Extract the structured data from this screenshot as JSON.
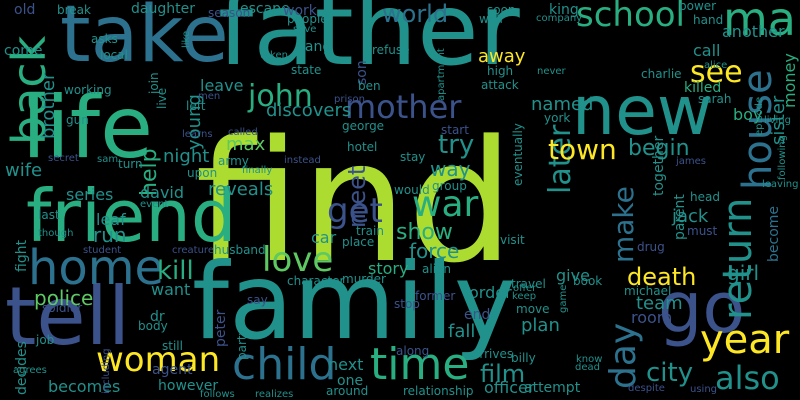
{
  "palette": {
    "background": "#000000",
    "dark_purple": "#440154",
    "indigo": "#3b528b",
    "blue": "#2c728e",
    "teal": "#21918c",
    "green": "#28ae80",
    "light_green": "#5ec962",
    "lime": "#addc30",
    "yellow": "#fde725"
  },
  "words": [
    {
      "key": "find",
      "text": "find"
    },
    {
      "key": "family",
      "text": "family"
    },
    {
      "key": "father",
      "text": "father"
    },
    {
      "key": "take",
      "text": "take"
    },
    {
      "key": "life",
      "text": "life"
    },
    {
      "key": "friend",
      "text": "friend"
    },
    {
      "key": "tell",
      "text": "tell"
    },
    {
      "key": "new",
      "text": "new"
    },
    {
      "key": "go",
      "text": "go"
    },
    {
      "key": "home",
      "text": "home"
    },
    {
      "key": "back",
      "text": "back"
    },
    {
      "key": "man",
      "text": "man"
    },
    {
      "key": "house",
      "text": "house"
    },
    {
      "key": "return",
      "text": "return"
    },
    {
      "key": "year",
      "text": "year"
    },
    {
      "key": "child",
      "text": "child"
    },
    {
      "key": "time",
      "text": "time"
    },
    {
      "key": "school",
      "text": "school"
    },
    {
      "key": "mother",
      "text": "mother"
    },
    {
      "key": "woman",
      "text": "woman"
    },
    {
      "key": "day",
      "text": "day"
    },
    {
      "key": "love",
      "text": "love"
    },
    {
      "key": "war",
      "text": "war"
    },
    {
      "key": "get",
      "text": "get"
    },
    {
      "key": "john",
      "text": "john"
    },
    {
      "key": "also",
      "text": "also"
    },
    {
      "key": "see",
      "text": "see"
    },
    {
      "key": "world",
      "text": "world"
    },
    {
      "key": "later",
      "text": "later"
    },
    {
      "key": "town",
      "text": "town"
    },
    {
      "key": "make",
      "text": "make"
    },
    {
      "key": "meet",
      "text": "meet"
    },
    {
      "key": "help",
      "text": "help"
    },
    {
      "key": "kill",
      "text": "kill"
    },
    {
      "key": "death",
      "text": "death"
    },
    {
      "key": "show",
      "text": "show"
    },
    {
      "key": "film",
      "text": "film"
    },
    {
      "key": "city",
      "text": "city"
    },
    {
      "key": "police",
      "text": "police"
    },
    {
      "key": "try",
      "text": "try"
    },
    {
      "key": "young",
      "text": "young"
    },
    {
      "key": "brother",
      "text": "brother"
    },
    {
      "key": "begin",
      "text": "begin"
    },
    {
      "key": "max",
      "text": "max"
    },
    {
      "key": "night",
      "text": "night"
    },
    {
      "key": "reveals",
      "text": "reveals"
    },
    {
      "key": "discovers",
      "text": "discovers"
    },
    {
      "key": "away",
      "text": "away"
    },
    {
      "key": "together",
      "text": "together"
    },
    {
      "key": "girl",
      "text": "girl"
    },
    {
      "key": "sister",
      "text": "sister"
    },
    {
      "key": "become",
      "text": "become"
    },
    {
      "key": "way",
      "text": "way"
    },
    {
      "key": "leave",
      "text": "leave"
    },
    {
      "key": "jack",
      "text": "jack"
    },
    {
      "key": "named",
      "text": "named"
    },
    {
      "key": "run",
      "text": "run"
    },
    {
      "key": "wife",
      "text": "wife"
    },
    {
      "key": "series",
      "text": "series"
    },
    {
      "key": "david",
      "text": "david"
    },
    {
      "key": "another",
      "text": "another"
    },
    {
      "key": "money",
      "text": "money"
    },
    {
      "key": "boy",
      "text": "boy"
    },
    {
      "key": "killed",
      "text": "killed"
    },
    {
      "key": "call",
      "text": "call"
    },
    {
      "key": "daughter",
      "text": "daughter"
    },
    {
      "key": "escape",
      "text": "escape"
    },
    {
      "key": "work",
      "text": "work"
    },
    {
      "key": "people",
      "text": "people"
    },
    {
      "key": "king",
      "text": "king"
    },
    {
      "key": "story",
      "text": "story"
    },
    {
      "key": "force",
      "text": "force"
    },
    {
      "key": "give",
      "text": "give"
    },
    {
      "key": "team",
      "text": "team"
    },
    {
      "key": "order",
      "text": "order"
    },
    {
      "key": "fall",
      "text": "fall"
    },
    {
      "key": "plan",
      "text": "plan"
    },
    {
      "key": "next",
      "text": "next"
    },
    {
      "key": "one",
      "text": "one"
    },
    {
      "key": "officer",
      "text": "officer"
    },
    {
      "key": "however",
      "text": "however"
    },
    {
      "key": "becomes",
      "text": "becomes"
    },
    {
      "key": "agent",
      "text": "agent"
    },
    {
      "key": "peter",
      "text": "peter"
    },
    {
      "key": "want",
      "text": "want"
    },
    {
      "key": "dr",
      "text": "dr"
    },
    {
      "key": "end",
      "text": "end"
    },
    {
      "key": "attempt",
      "text": "attempt"
    },
    {
      "key": "decides",
      "text": "decides"
    },
    {
      "key": "fight",
      "text": "fight"
    },
    {
      "key": "leaf",
      "text": "leaf"
    },
    {
      "key": "army",
      "text": "army"
    },
    {
      "key": "parent",
      "text": "parent"
    },
    {
      "key": "room",
      "text": "room"
    },
    {
      "key": "old",
      "text": "old"
    },
    {
      "key": "break",
      "text": "break"
    },
    {
      "key": "season",
      "text": "season"
    },
    {
      "key": "soon",
      "text": "soon"
    },
    {
      "key": "power",
      "text": "power"
    },
    {
      "key": "hand",
      "text": "hand"
    },
    {
      "key": "come",
      "text": "come"
    },
    {
      "key": "asks",
      "text": "asks"
    },
    {
      "key": "local",
      "text": "local"
    },
    {
      "key": "like",
      "text": "like"
    },
    {
      "key": "save",
      "text": "save"
    },
    {
      "key": "taken",
      "text": "taken"
    },
    {
      "key": "gang",
      "text": "gang"
    },
    {
      "key": "state",
      "text": "state"
    },
    {
      "key": "son",
      "text": "son"
    },
    {
      "key": "refuse",
      "text": "refuse"
    },
    {
      "key": "apartment",
      "text": "apartment"
    },
    {
      "key": "well",
      "text": "well"
    },
    {
      "key": "company",
      "text": "company"
    },
    {
      "key": "high",
      "text": "high"
    },
    {
      "key": "never",
      "text": "never"
    },
    {
      "key": "charlie",
      "text": "charlie"
    },
    {
      "key": "alice",
      "text": "alice"
    },
    {
      "key": "sarah",
      "text": "sarah"
    },
    {
      "key": "episode",
      "text": "episode"
    },
    {
      "key": "living",
      "text": "living"
    },
    {
      "key": "working",
      "text": "working"
    },
    {
      "key": "gun",
      "text": "gun"
    },
    {
      "key": "live",
      "text": "live"
    },
    {
      "key": "join",
      "text": "join"
    },
    {
      "key": "left",
      "text": "left"
    },
    {
      "key": "ben",
      "text": "ben"
    },
    {
      "key": "prison",
      "text": "prison"
    },
    {
      "key": "attack",
      "text": "attack"
    },
    {
      "key": "george",
      "text": "george"
    },
    {
      "key": "start",
      "text": "start"
    },
    {
      "key": "york",
      "text": "york"
    },
    {
      "key": "hotel",
      "text": "hotel"
    },
    {
      "key": "stay",
      "text": "stay"
    },
    {
      "key": "eventually",
      "text": "eventually"
    },
    {
      "key": "head",
      "text": "head"
    },
    {
      "key": "following",
      "text": "following"
    },
    {
      "key": "leaving",
      "text": "leaving"
    },
    {
      "key": "learns",
      "text": "learns"
    },
    {
      "key": "called",
      "text": "called"
    },
    {
      "key": "instead",
      "text": "instead"
    },
    {
      "key": "secret",
      "text": "secret"
    },
    {
      "key": "sam",
      "text": "sam"
    },
    {
      "key": "turn",
      "text": "turn"
    },
    {
      "key": "upon",
      "text": "upon"
    },
    {
      "key": "finally",
      "text": "finally"
    },
    {
      "key": "would",
      "text": "would"
    },
    {
      "key": "group",
      "text": "group"
    },
    {
      "key": "last",
      "text": "last"
    },
    {
      "key": "event",
      "text": "event"
    },
    {
      "key": "though",
      "text": "though"
    },
    {
      "key": "student",
      "text": "student"
    },
    {
      "key": "creature",
      "text": "creature"
    },
    {
      "key": "husband",
      "text": "husband"
    },
    {
      "key": "car",
      "text": "car"
    },
    {
      "key": "place",
      "text": "place"
    },
    {
      "key": "train",
      "text": "train"
    },
    {
      "key": "visit",
      "text": "visit"
    },
    {
      "key": "drug",
      "text": "drug"
    },
    {
      "key": "must",
      "text": "must"
    },
    {
      "key": "alien",
      "text": "alien"
    },
    {
      "key": "travel",
      "text": "travel"
    },
    {
      "key": "book",
      "text": "book"
    },
    {
      "key": "michael",
      "text": "michael"
    },
    {
      "key": "character",
      "text": "character"
    },
    {
      "key": "murder",
      "text": "murder"
    },
    {
      "key": "former",
      "text": "former"
    },
    {
      "key": "offer",
      "text": "offer"
    },
    {
      "key": "keep",
      "text": "keep"
    },
    {
      "key": "game",
      "text": "game"
    },
    {
      "key": "stop",
      "text": "stop"
    },
    {
      "key": "move",
      "text": "move"
    },
    {
      "key": "soldier",
      "text": "soldier"
    },
    {
      "key": "body",
      "text": "body"
    },
    {
      "key": "job",
      "text": "job"
    },
    {
      "key": "including",
      "text": "including"
    },
    {
      "key": "still",
      "text": "still"
    },
    {
      "key": "party",
      "text": "party"
    },
    {
      "key": "along",
      "text": "along"
    },
    {
      "key": "relationship",
      "text": "relationship"
    },
    {
      "key": "arrives",
      "text": "arrives"
    },
    {
      "key": "billy",
      "text": "billy"
    },
    {
      "key": "know",
      "text": "know"
    },
    {
      "key": "dead",
      "text": "dead"
    },
    {
      "key": "despite",
      "text": "despite"
    },
    {
      "key": "using",
      "text": "using"
    },
    {
      "key": "agrees",
      "text": "agrees"
    },
    {
      "key": "follows",
      "text": "follows"
    },
    {
      "key": "realizes",
      "text": "realizes"
    },
    {
      "key": "around",
      "text": "around"
    },
    {
      "key": "james",
      "text": "james"
    },
    {
      "key": "men",
      "text": "men"
    },
    {
      "key": "say",
      "text": "say"
    }
  ]
}
